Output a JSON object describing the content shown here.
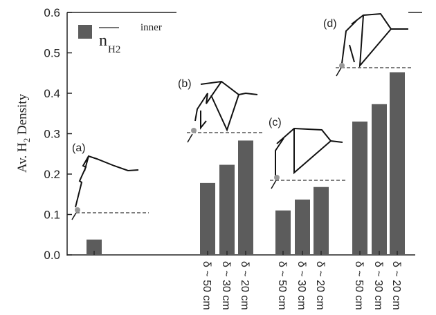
{
  "chart_data": {
    "type": "bar",
    "ylabel": [
      "Av. H",
      "2",
      " Density"
    ],
    "categories": [
      null,
      "δ ~ 50 cm",
      "δ ~ 30 cm",
      "δ ~ 20 cm",
      "δ ~ 50 cm",
      "δ ~ 30 cm",
      "δ ~ 20 cm",
      "δ ~ 50 cm",
      "δ ~ 30 cm",
      "δ ~ 20 cm"
    ],
    "series": [
      {
        "name": "n",
        "name_sub": "H2",
        "name_sup": "inner",
        "color": "#5c5c5c",
        "values": [
          0.038,
          0.178,
          0.223,
          0.283,
          0.11,
          0.137,
          0.168,
          0.33,
          0.373,
          0.452
        ]
      }
    ],
    "annotations": [
      "(a)",
      "(b)",
      "(c)",
      "(d)"
    ],
    "ylim": [
      0,
      0.6
    ],
    "yticks": [
      {
        "value": 0,
        "label": "0.0"
      },
      {
        "value": 0.1,
        "label": "0.1"
      },
      {
        "value": 0.2,
        "label": "0.2"
      },
      {
        "value": 0.3,
        "label": "0.3"
      },
      {
        "value": 0.4,
        "label": "0.4"
      },
      {
        "value": 0.5,
        "label": "0.5"
      },
      {
        "value": 0.6,
        "label": "0.6"
      }
    ]
  }
}
